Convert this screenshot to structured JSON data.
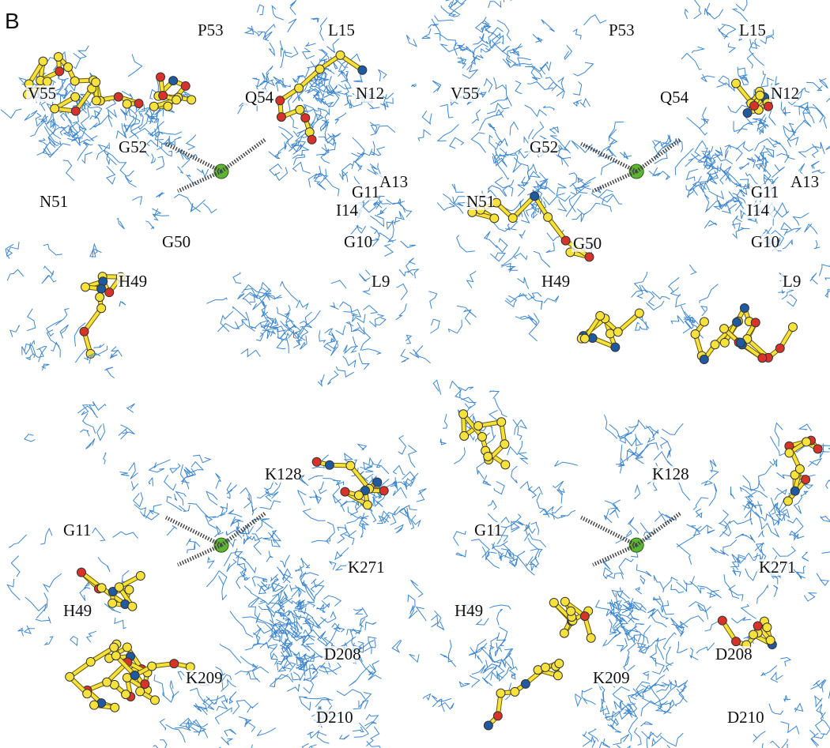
{
  "panel_label": "B",
  "panels": [
    {
      "labels": [
        "P53",
        "L15",
        "V55",
        "Q54",
        "N12",
        "G52",
        "A13",
        "N51",
        "G11",
        "I14",
        "G10",
        "G50",
        "H49",
        "L9"
      ]
    },
    {
      "labels": [
        "P53",
        "L15",
        "V55",
        "Q54",
        "N12",
        "G52",
        "A13",
        "N51",
        "G11",
        "I14",
        "G10",
        "G50",
        "H49",
        "L9"
      ]
    },
    {
      "labels": [
        "K128",
        "G11",
        "K271",
        "H49",
        "D208",
        "K209",
        "D210"
      ]
    },
    {
      "labels": [
        "K128",
        "G11",
        "K271",
        "H49",
        "D208",
        "K209",
        "D210"
      ]
    }
  ]
}
